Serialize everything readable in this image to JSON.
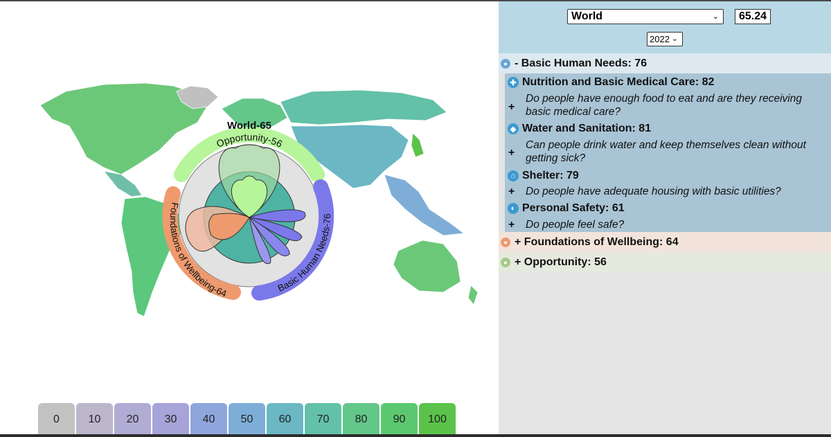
{
  "map": {
    "center_title": "World-65",
    "arc_labels": {
      "opportunity": "Opportunity-56",
      "foundations": "Foundations of Wellbeing-64",
      "basic": "Basic Human Needs-76"
    },
    "colors": {
      "opportunity": "#b6f59a",
      "foundations": "#ee9a6e",
      "basic": "#7b78ea",
      "teal": "#4fb3a3",
      "land_green": "#6cc879",
      "land_teal": "#5bb9b2",
      "land_blue": "#7fa6d8",
      "land_gray": "#c0c0c0"
    }
  },
  "legend": {
    "values": [
      "0",
      "10",
      "20",
      "30",
      "40",
      "50",
      "60",
      "70",
      "80",
      "90",
      "100"
    ],
    "colors": [
      "#c2c2c2",
      "#bcb6cb",
      "#b1acd4",
      "#a6a4d8",
      "#8fa6dc",
      "#7eaed8",
      "#6bb7c4",
      "#63c1a8",
      "#63c78a",
      "#5bc86f",
      "#5bc34a"
    ]
  },
  "panel": {
    "region": "World",
    "score": "65.24",
    "year": "2022",
    "dimensions": [
      {
        "label": "- Basic Human Needs: 76",
        "icon": "basic-needs-icon",
        "color": "#dde8ef",
        "icon_color": "#6aa6d6"
      },
      {
        "label": "+ Foundations of Wellbeing: 64",
        "icon": "wellbeing-icon",
        "color": "#f3e4db",
        "icon_color": "#ee9a6e"
      },
      {
        "label": "+ Opportunity: 56",
        "icon": "opportunity-icon",
        "color": "#e6eade",
        "icon_color": "#a7c98a"
      }
    ],
    "components": [
      {
        "title": "Nutrition and Basic Medical Care: 82",
        "icon": "medical-cross-icon",
        "glyph": "✚",
        "question": "Do people have enough food to eat and are they receiving basic medical care?"
      },
      {
        "title": "Water and Sanitation: 81",
        "icon": "water-drop-icon",
        "glyph": "💧",
        "question": "Can people drink water and keep themselves clean without getting sick?"
      },
      {
        "title": "Shelter: 79",
        "icon": "shelter-icon",
        "glyph": "⌂",
        "question": "Do people have adequate housing with basic utilities?"
      },
      {
        "title": "Personal Safety: 61",
        "icon": "shield-icon",
        "glyph": "◐",
        "question": "Do people feel safe?"
      }
    ],
    "plus_label": "+"
  }
}
